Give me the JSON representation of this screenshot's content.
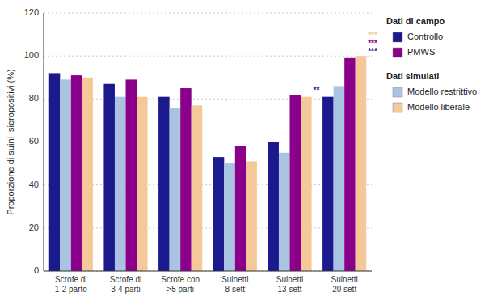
{
  "chart_data": {
    "type": "bar",
    "categories": [
      "Scrofe di\n1-2 parto",
      "Scrofe di\n3-4 parti",
      "Scrofe con\n>5 parti",
      "Suinetti\n8 sett",
      "Suinetti\n13 sett",
      "Suinetti\n20 sett"
    ],
    "series": [
      {
        "name": "Controllo",
        "color": "#1a1a8c",
        "values": [
          92,
          87,
          81,
          53,
          60,
          81
        ]
      },
      {
        "name": "Modello restrittivo",
        "color": "#a8c4e0",
        "values": [
          89,
          81,
          76,
          50,
          55,
          86
        ]
      },
      {
        "name": "PMWS",
        "color": "#8b008b",
        "values": [
          91,
          89,
          85,
          58,
          82,
          99
        ]
      },
      {
        "name": "Modello liberale",
        "color": "#f5c89a",
        "values": [
          90,
          81,
          77,
          51,
          81,
          100
        ]
      }
    ],
    "ylabel": "Proporzione di suini  sieropositivi (%)",
    "ylim": [
      0,
      120
    ],
    "yticks": [
      0,
      20,
      40,
      60,
      80,
      100,
      120
    ],
    "grid": true,
    "legend": "right",
    "legend_groups": [
      {
        "label": "Dati di campo",
        "series": [
          "Controllo",
          "PMWS"
        ]
      },
      {
        "label": "Dati simulati",
        "series": [
          "Modello restrittivo",
          "Modello liberale"
        ]
      }
    ],
    "annotations": [
      {
        "text": "**",
        "color": "#1a1a8c",
        "category": "Suinetti\n13 sett"
      },
      {
        "text": "***",
        "color": "#1a1a8c",
        "category": "Suinetti\n20 sett"
      },
      {
        "text": "***",
        "color": "#8b008b",
        "category": "Suinetti\n20 sett"
      },
      {
        "text": "***",
        "color": "#f5c89a",
        "category": "Suinetti\n20 sett"
      }
    ]
  }
}
